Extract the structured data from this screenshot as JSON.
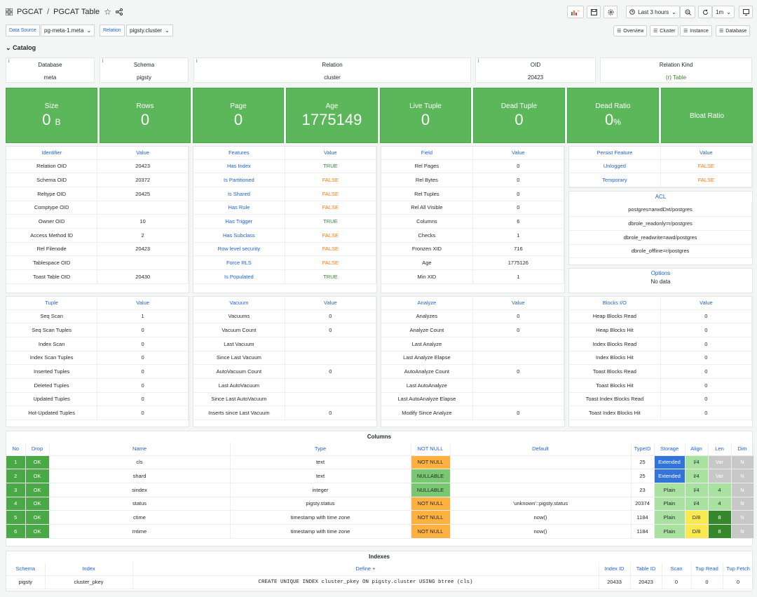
{
  "header": {
    "apps_icon": "grid-icon",
    "crumb1": "PGCAT",
    "sep": "/",
    "crumb2": "PGCAT Table",
    "time_range": "Last 3 hours",
    "refresh": "1m"
  },
  "vars": {
    "ds_label": "Data Source",
    "ds_value": "pg-meta-1.meta",
    "rel_label": "Relation",
    "rel_value": "pigsty.cluster"
  },
  "nav": [
    "Overview",
    "Cluster",
    "Instance",
    "Database"
  ],
  "row_title": "Catalog",
  "catalog": [
    {
      "label": "Database",
      "value": "meta"
    },
    {
      "label": "Schema",
      "value": "pigsty"
    },
    {
      "label": "Relation",
      "value": "cluster"
    },
    {
      "label": "OID",
      "value": "20423"
    },
    {
      "label": "Relation Kind",
      "value": "(r) Table"
    }
  ],
  "stats": [
    {
      "label": "Size",
      "value": "0",
      "unit": "B"
    },
    {
      "label": "Rows",
      "value": "0",
      "unit": ""
    },
    {
      "label": "Page",
      "value": "0",
      "unit": ""
    },
    {
      "label": "Age",
      "value": "1775149",
      "unit": ""
    },
    {
      "label": "Live Tuple",
      "value": "0",
      "unit": ""
    },
    {
      "label": "Dead Tuple",
      "value": "0",
      "unit": ""
    },
    {
      "label": "Dead Ratio",
      "value": "0",
      "unit": "%"
    },
    {
      "label": "Bloat Ratio",
      "value": "",
      "unit": ""
    }
  ],
  "identifier": {
    "headers": [
      "Identifier",
      "Value"
    ],
    "rows": [
      [
        "Relation OID",
        "20423"
      ],
      [
        "Schema OID",
        "20372"
      ],
      [
        "Reltype OID",
        "20425"
      ],
      [
        "Comptype OID",
        ""
      ],
      [
        "Owner OID",
        "10"
      ],
      [
        "Access Method ID",
        "2"
      ],
      [
        "Rel Filenode",
        "20423"
      ],
      [
        "Tablespace OID",
        ""
      ],
      [
        "Toast Table OID",
        "20430"
      ]
    ]
  },
  "features": {
    "headers": [
      "Features",
      "Value"
    ],
    "rows": [
      [
        "Has Index",
        "TRUE"
      ],
      [
        "Is Partitioned",
        "FALSE"
      ],
      [
        "Is Shared",
        "FALSE"
      ],
      [
        "Has Rule",
        "FALSE"
      ],
      [
        "Has Trigger",
        "TRUE"
      ],
      [
        "Has Subclass",
        "FALSE"
      ],
      [
        "Row level security",
        "FALSE"
      ],
      [
        "Force RLS",
        "FALSE"
      ],
      [
        "Is Populated",
        "TRUE"
      ]
    ]
  },
  "fields": {
    "headers": [
      "Field",
      "Value"
    ],
    "rows": [
      [
        "Rel Pages",
        "0"
      ],
      [
        "Rel Bytes",
        "0"
      ],
      [
        "Rel Tuples",
        "0"
      ],
      [
        "Rel All Visible",
        "0"
      ],
      [
        "Columns",
        "6"
      ],
      [
        "Checks",
        "1"
      ],
      [
        "Fronzen XID",
        "716"
      ],
      [
        "Age",
        "1775126"
      ],
      [
        "Min XID",
        "1"
      ]
    ]
  },
  "persist": {
    "headers": [
      "Persist Feature",
      "Value"
    ],
    "rows": [
      [
        "Unlogged",
        "FALSE"
      ],
      [
        "Temporary",
        "FALSE"
      ]
    ]
  },
  "acl": {
    "title": "ACL",
    "rows": [
      "postgres=arwdDxt/postgres",
      "dbrole_readonly=r/postgres",
      "dbrole_readwrite=awd/postgres",
      "dbrole_offline=r/postgres"
    ]
  },
  "options": {
    "title": "Options",
    "empty": "No data"
  },
  "tuple": {
    "headers": [
      "Tuple",
      "Value"
    ],
    "rows": [
      [
        "Seq Scan",
        "1"
      ],
      [
        "Seq Scan Tuples",
        "0"
      ],
      [
        "Index Scan",
        "0"
      ],
      [
        "Index Scan Tuples",
        "0"
      ],
      [
        "Inserted Tuples",
        "0"
      ],
      [
        "Deleted Tuples",
        "0"
      ],
      [
        "Updated Tuples",
        "0"
      ],
      [
        "Hot-Updated Tuples",
        "0"
      ]
    ]
  },
  "vacuum": {
    "headers": [
      "Vacuum",
      "Value"
    ],
    "rows": [
      [
        "Vacuums",
        "0"
      ],
      [
        "Vacuum Count",
        "0"
      ],
      [
        "Last Vacuum",
        ""
      ],
      [
        "Since Last Vacuum",
        ""
      ],
      [
        "AutoVacuum Count",
        "0"
      ],
      [
        "Last AutoVacuum",
        ""
      ],
      [
        "Since Last AutoVacuum",
        ""
      ],
      [
        "Inserts since Last Vacuum",
        "0"
      ]
    ]
  },
  "analyze": {
    "headers": [
      "Analyze",
      "Value"
    ],
    "rows": [
      [
        "Analyzes",
        "0"
      ],
      [
        "Analyze Count",
        "0"
      ],
      [
        "Last Analyze",
        ""
      ],
      [
        "Last Analyze Elapse",
        ""
      ],
      [
        "AutoAnalyze Count",
        "0"
      ],
      [
        "Last AutoAnalyze",
        ""
      ],
      [
        "Last AutoAnalyze Elapse",
        ""
      ],
      [
        "Modify Since Analyze",
        "0"
      ]
    ]
  },
  "blocks": {
    "headers": [
      "Blocks I/O",
      "Value"
    ],
    "rows": [
      [
        "Heap Blocks Read",
        "0"
      ],
      [
        "Heap Blocks Hit",
        "0"
      ],
      [
        "Index Blocks Read",
        "0"
      ],
      [
        "Index Blocks Hit",
        "0"
      ],
      [
        "Toast Blocks Read",
        "0"
      ],
      [
        "Toast Blocks Hit",
        "0"
      ],
      [
        "Toast Index Blocks Read",
        "0"
      ],
      [
        "Toast Index Blocks Hit",
        "0"
      ]
    ]
  },
  "columns": {
    "title": "Columns",
    "headers": [
      "No",
      "Drop",
      "Name",
      "Type",
      "NOT NULL",
      "Default",
      "TypeID",
      "Storage",
      "Align",
      "Len",
      "Dim"
    ],
    "rows": [
      [
        "1",
        "OK",
        "cls",
        "text",
        "NOT NULL",
        "",
        "25",
        "Extended",
        "I/4",
        "Var",
        "N"
      ],
      [
        "2",
        "OK",
        "shard",
        "text",
        "NULLABLE",
        "",
        "25",
        "Extended",
        "I/4",
        "Var",
        "N"
      ],
      [
        "3",
        "OK",
        "sindex",
        "integer",
        "NULLABLE",
        "",
        "23",
        "Plain",
        "I/4",
        "4",
        "N"
      ],
      [
        "4",
        "OK",
        "status",
        "pigsty.status",
        "NOT NULL",
        "'unknown'::pigsty.status",
        "20374",
        "Plain",
        "I/4",
        "4",
        "N"
      ],
      [
        "5",
        "OK",
        "ctime",
        "timestamp with time zone",
        "NOT NULL",
        "now()",
        "1184",
        "Plain",
        "D/8",
        "8",
        "N"
      ],
      [
        "6",
        "OK",
        "mtime",
        "timestamp with time zone",
        "NOT NULL",
        "now()",
        "1184",
        "Plain",
        "D/8",
        "8",
        "N"
      ]
    ]
  },
  "indexes": {
    "title": "Indexes",
    "headers": [
      "Schema",
      "Index",
      "Define +",
      "Index ID",
      "Table ID",
      "Scan",
      "Tup Read",
      "Tup Fetch"
    ],
    "rows": [
      [
        "pigsty",
        "cluster_pkey",
        "CREATE UNIQUE INDEX cluster_pkey ON pigsty.cluster USING btree (cls)",
        "20433",
        "20423",
        "0",
        "0",
        "0"
      ]
    ]
  },
  "colors": {
    "stat_green": "#5cb65a",
    "link_blue": "#1f62e0",
    "true_green": "#37872d",
    "false_orange": "#ff780a",
    "ok_green": "#4ba846",
    "notnull_orange": "#ffb140",
    "storage_blue": "#3274d9"
  }
}
